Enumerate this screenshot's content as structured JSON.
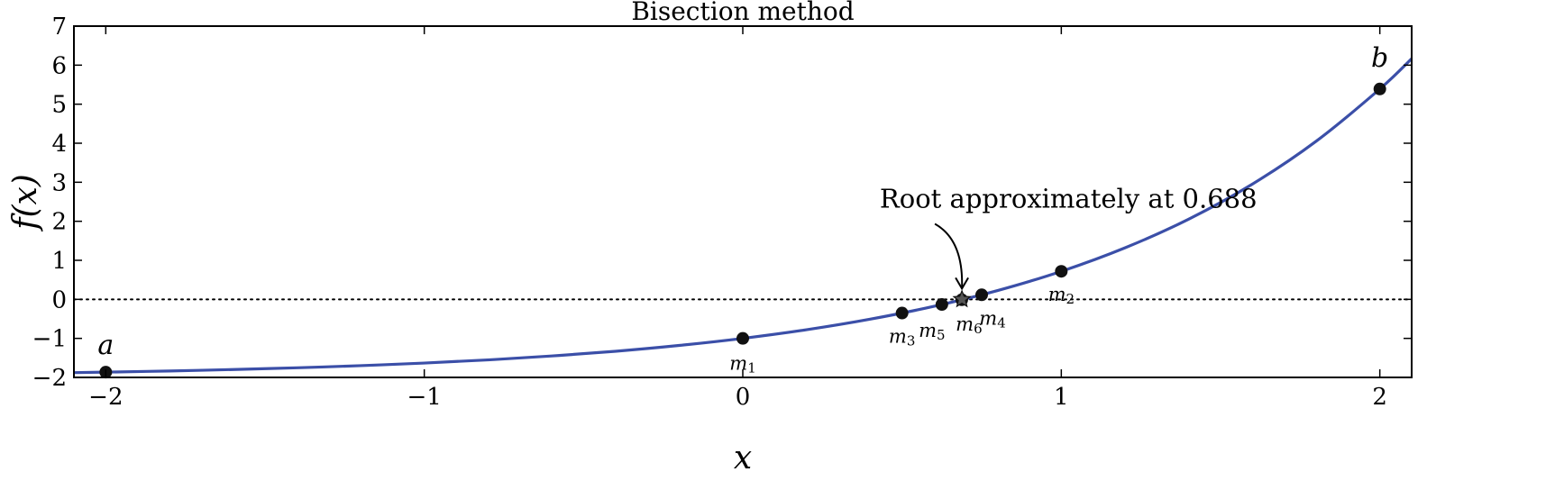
{
  "chart_data": {
    "type": "line",
    "title": "Bisection method",
    "xlabel": "x",
    "ylabel": "f(x)",
    "xlim": [
      -2.1,
      2.1
    ],
    "ylim": [
      -2,
      7
    ],
    "xticks": [
      -2,
      -1,
      0,
      1,
      2
    ],
    "xtick_labels": [
      "−2",
      "−1",
      "0",
      "1",
      "2"
    ],
    "yticks": [
      -2,
      -1,
      0,
      1,
      2,
      3,
      4,
      5,
      6,
      7
    ],
    "ytick_labels": [
      "−2",
      "−1",
      "0",
      "1",
      "2",
      "3",
      "4",
      "5",
      "6",
      "7"
    ],
    "grid": false,
    "colors": {
      "curve": "#3b4fa8",
      "points": "#111111",
      "root_marker": "#555555",
      "zero_line": "#000000"
    },
    "series": [
      {
        "x": [
          -2.1,
          -2.0,
          -1.8,
          -1.6,
          -1.4,
          -1.2,
          -1.0,
          -0.8,
          -0.6,
          -0.4,
          -0.2,
          0.0,
          0.2,
          0.4,
          0.6,
          0.8,
          1.0,
          1.2,
          1.4,
          1.6,
          1.8,
          2.0,
          2.1
        ],
        "y": [
          -1.878,
          -1.865,
          -1.835,
          -1.798,
          -1.753,
          -1.699,
          -1.632,
          -1.551,
          -1.451,
          -1.33,
          -1.181,
          -1.0,
          -0.779,
          -0.508,
          -0.178,
          0.226,
          0.718,
          1.32,
          2.055,
          2.953,
          4.05,
          5.389,
          6.166
        ]
      }
    ],
    "points": [
      {
        "label": "a",
        "x": -2.0,
        "y": -1.865
      },
      {
        "label": "b",
        "x": 2.0,
        "y": 5.389
      },
      {
        "label": "m1",
        "x": 0.0,
        "y": -1.0
      },
      {
        "label": "m2",
        "x": 1.0,
        "y": 0.718
      },
      {
        "label": "m3",
        "x": 0.5,
        "y": -0.351
      },
      {
        "label": "m4",
        "x": 0.75,
        "y": 0.117
      },
      {
        "label": "m5",
        "x": 0.625,
        "y": -0.132
      },
      {
        "label": "m6",
        "x": 0.6875,
        "y": -0.011
      }
    ],
    "root": {
      "x": 0.688,
      "y": 0.0
    },
    "annotation": {
      "text": "Root approximately at 0.688",
      "x": 0.688,
      "y": 0.0,
      "text_x": 0.43,
      "text_y": 2.35
    }
  }
}
